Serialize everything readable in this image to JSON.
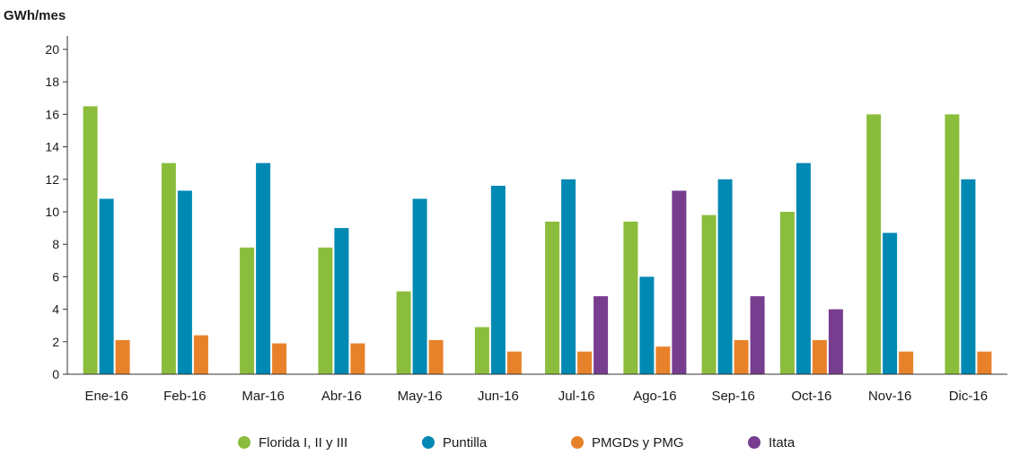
{
  "chart_data": {
    "type": "bar",
    "ylabel": "GWh/mes",
    "xlabel": "",
    "ylim": [
      0,
      20
    ],
    "yticks": [
      0,
      2,
      4,
      6,
      8,
      10,
      12,
      14,
      16,
      18,
      20
    ],
    "grid": false,
    "legend_position": "bottom",
    "categories": [
      "Ene-16",
      "Feb-16",
      "Mar-16",
      "Abr-16",
      "May-16",
      "Jun-16",
      "Jul-16",
      "Ago-16",
      "Sep-16",
      "Oct-16",
      "Nov-16",
      "Dic-16"
    ],
    "series": [
      {
        "name": "Florida I, II y III",
        "color": "#8bbd3c",
        "values": [
          16.5,
          13.0,
          7.8,
          7.8,
          5.1,
          2.9,
          9.4,
          9.4,
          9.8,
          10.0,
          16.0,
          16.0
        ]
      },
      {
        "name": "Puntilla",
        "color": "#0089b3",
        "values": [
          10.8,
          11.3,
          13.0,
          9.0,
          10.8,
          11.6,
          12.0,
          6.0,
          12.0,
          13.0,
          8.7,
          12.0
        ]
      },
      {
        "name": "PMGDs y PMG",
        "color": "#e8822a",
        "values": [
          2.1,
          2.4,
          1.9,
          1.9,
          2.1,
          1.4,
          1.4,
          1.7,
          2.1,
          2.1,
          1.4,
          1.4
        ]
      },
      {
        "name": "Itata",
        "color": "#773d8f",
        "values": [
          null,
          null,
          null,
          null,
          null,
          null,
          4.8,
          11.3,
          4.8,
          4.0,
          null,
          null
        ]
      }
    ]
  }
}
